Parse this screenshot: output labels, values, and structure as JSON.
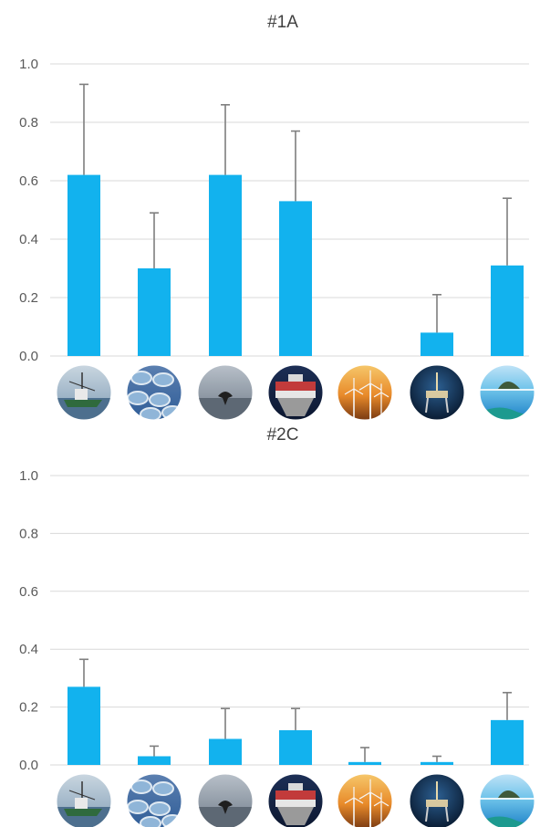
{
  "chart_data": [
    {
      "type": "bar",
      "title": "#1A",
      "ylim": [
        0,
        1.0
      ],
      "yticks": [
        "0.0",
        "0.2",
        "0.4",
        "0.6",
        "0.8",
        "1.0"
      ],
      "grid": true,
      "categories": [
        "fishing-vessel",
        "fish-farm-pens",
        "whale-tail",
        "cargo-ship",
        "wind-turbines",
        "oil-platform",
        "island-underwater"
      ],
      "values": [
        0.62,
        0.3,
        0.62,
        0.53,
        0.0,
        0.08,
        0.31
      ],
      "errors": [
        0.31,
        0.19,
        0.24,
        0.24,
        0.0,
        0.13,
        0.23
      ]
    },
    {
      "type": "bar",
      "title": "#2C",
      "ylim": [
        0,
        1.0
      ],
      "yticks": [
        "0.0",
        "0.2",
        "0.4",
        "0.6",
        "0.8",
        "1.0"
      ],
      "grid": true,
      "categories": [
        "fishing-vessel",
        "fish-farm-pens",
        "whale-tail",
        "cargo-ship",
        "wind-turbines",
        "oil-platform",
        "island-underwater"
      ],
      "values": [
        0.27,
        0.03,
        0.09,
        0.12,
        0.01,
        0.01,
        0.155
      ],
      "errors": [
        0.095,
        0.035,
        0.105,
        0.075,
        0.05,
        0.02,
        0.095
      ]
    }
  ],
  "colors": {
    "bar": "#12b2ee",
    "error_bar": "#7f7f7f",
    "grid": "#d9d9d9"
  }
}
